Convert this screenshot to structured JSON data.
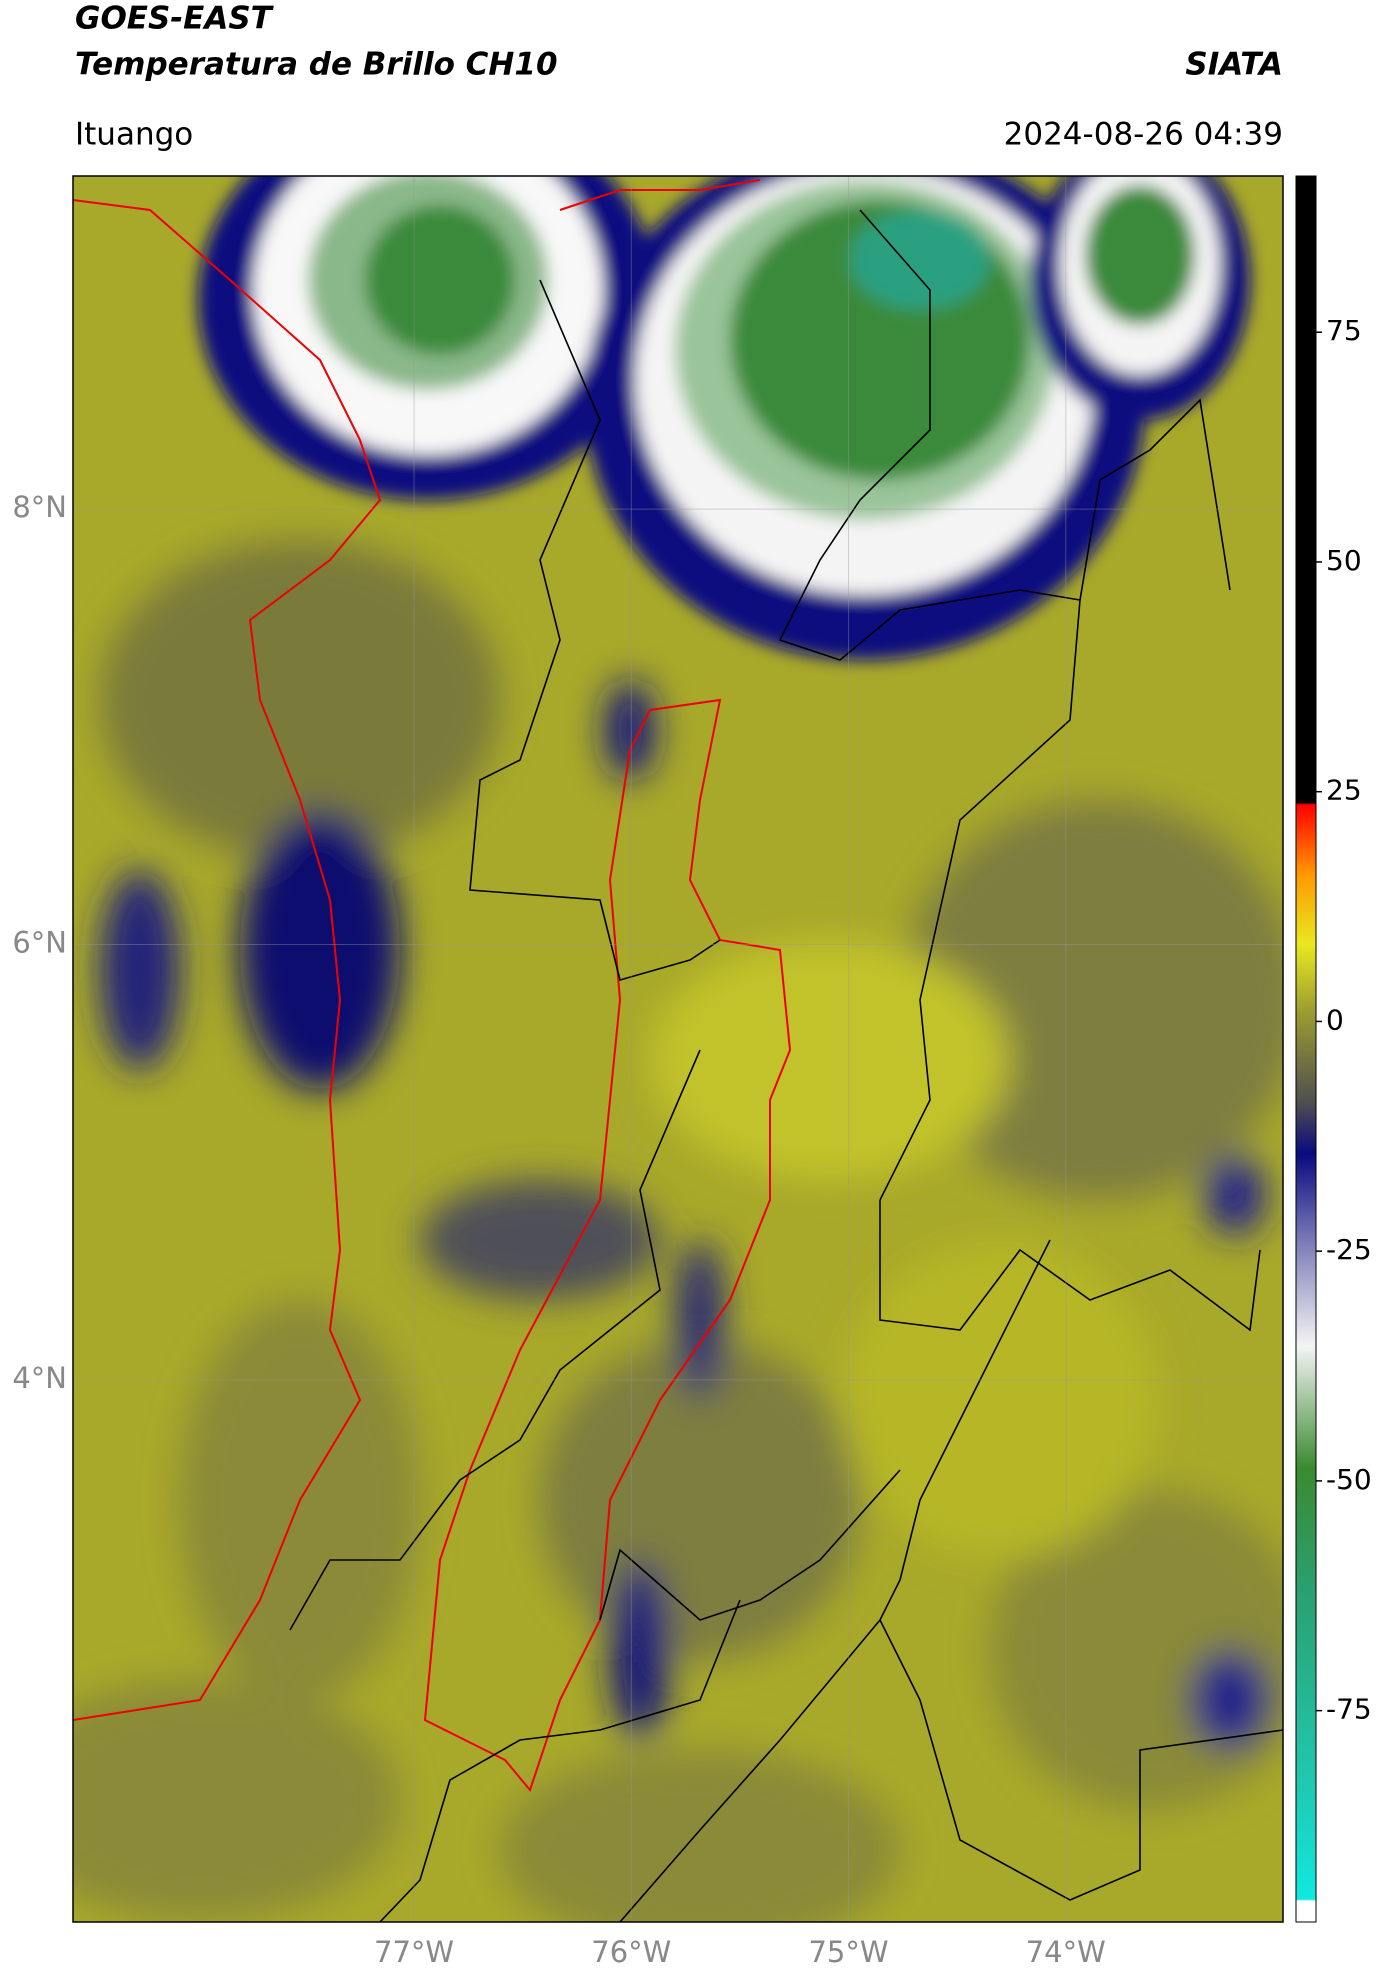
{
  "header": {
    "title": "GOES-EAST",
    "subtitle": "Temperatura de Brillo CH10",
    "source": "SIATA",
    "location": "Ituango",
    "datetime": "2024-08-26 04:39"
  },
  "map": {
    "lonlim": [
      -78.57,
      -73.0
    ],
    "latlim": [
      1.51,
      9.53
    ],
    "lonticks": [
      {
        "value": -77,
        "label": "77°W"
      },
      {
        "value": -76,
        "label": "76°W"
      },
      {
        "value": -75,
        "label": "75°W"
      },
      {
        "value": -74,
        "label": "74°W"
      }
    ],
    "latticks": [
      {
        "value": 8,
        "label": "8°N"
      },
      {
        "value": 6,
        "label": "6°N"
      },
      {
        "value": 4,
        "label": "4°N"
      }
    ],
    "grid": true
  },
  "colorbar": {
    "lim": [
      -98,
      92
    ],
    "ticks": [
      75,
      50,
      25,
      0,
      -25,
      -50,
      -75
    ]
  }
}
